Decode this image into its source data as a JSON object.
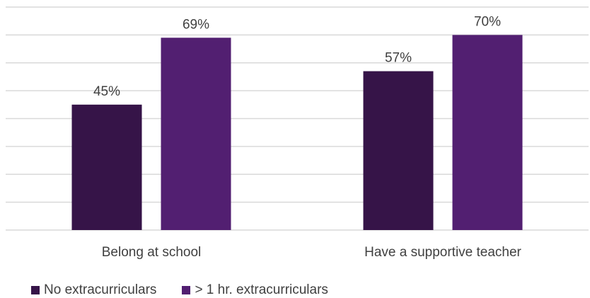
{
  "chart_data": {
    "type": "bar",
    "categories": [
      "Belong at school",
      "Have a supportive teacher"
    ],
    "series": [
      {
        "name": "No extracurriculars",
        "values": [
          45,
          57
        ],
        "color": "#361448"
      },
      {
        "name": "> 1 hr. extracurriculars",
        "values": [
          69,
          70
        ],
        "color": "#521f71"
      }
    ],
    "data_labels": [
      [
        "45%",
        "57%"
      ],
      [
        "69%",
        "70%"
      ]
    ],
    "title": "",
    "xlabel": "",
    "ylabel": "",
    "ylim": [
      0,
      80
    ],
    "grid": true,
    "legend_position": "bottom-left"
  }
}
